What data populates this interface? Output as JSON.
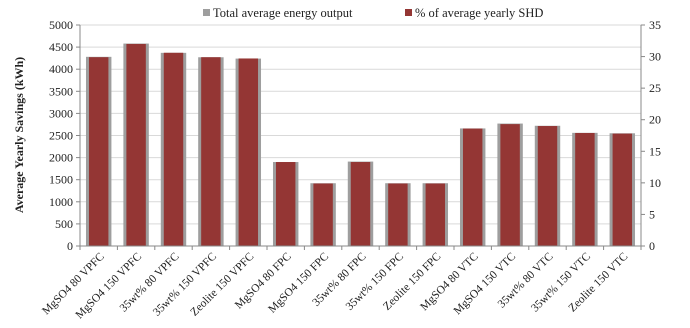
{
  "chart_data": {
    "type": "bar",
    "title": "",
    "xlabel": "",
    "ylabel": "Average Yearly Savings (kWh)",
    "ylim": [
      0,
      5000
    ],
    "yticks": [
      0,
      500,
      1000,
      1500,
      2000,
      2500,
      3000,
      3500,
      4000,
      4500,
      5000
    ],
    "y2lim": [
      0,
      35
    ],
    "y2ticks": [
      0,
      5,
      10,
      15,
      20,
      25,
      30,
      35
    ],
    "grid": true,
    "legend_position": "top",
    "categories": [
      "MgSO4 80 VPFC",
      "MgSO4 150 VPFC",
      "35wt% 80 VPFC",
      "35wt% 150 VPFC",
      "Zeolite 150 VPFC",
      "MgSO4 80 FPC",
      "MgSO4 150 FPC",
      "35wt% 80 FPC",
      "35wt% 150 FPC",
      "Zeolite 150 FPC",
      "MgSO4 80 VTC",
      "MgSO4 150 VTC",
      "35wt% 80 VTC",
      "35wt% 150 VTC",
      "Zeolite 150 VTC"
    ],
    "series": [
      {
        "name": "Total average energy output",
        "axis": "left",
        "color": "#9e9e9e",
        "values": [
          4280,
          4580,
          4370,
          4270,
          4240,
          1900,
          1420,
          1910,
          1420,
          1420,
          2660,
          2770,
          2720,
          2560,
          2550
        ]
      },
      {
        "name": "% of average yearly SHD",
        "axis": "right",
        "color": "#943634",
        "values": [
          29.9,
          32.0,
          30.6,
          29.9,
          29.7,
          13.3,
          9.9,
          13.3,
          9.9,
          9.9,
          18.6,
          19.3,
          19.0,
          17.9,
          17.8
        ]
      }
    ]
  }
}
